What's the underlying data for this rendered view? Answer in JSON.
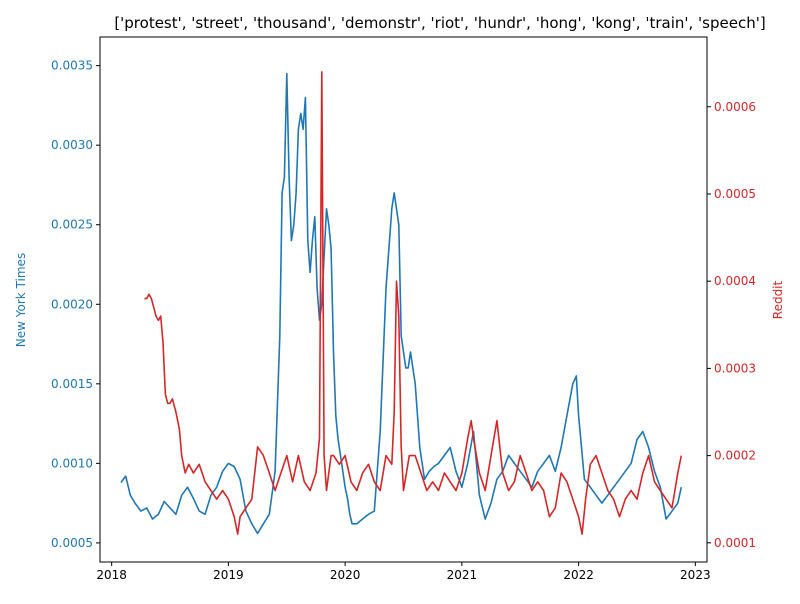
{
  "chart_data": {
    "type": "line",
    "title": "['protest', 'street', 'thousand', 'demonstr', 'riot', 'hundr', 'hong', 'kong', 'train', 'speech']",
    "xlabel": "",
    "x_ticks": [
      "2018",
      "2019",
      "2020",
      "2021",
      "2022",
      "2023"
    ],
    "xlim": [
      2017.9,
      2023.1
    ],
    "y_left": {
      "label": "New York Times",
      "ylim": [
        0.00038,
        0.00368
      ],
      "ticks": [
        "0.0005",
        "0.0010",
        "0.0015",
        "0.0020",
        "0.0025",
        "0.0030",
        "0.0035"
      ],
      "color": "#1f77b4"
    },
    "y_right": {
      "label": "Reddit",
      "ylim": [
        7.8e-05,
        0.00068
      ],
      "ticks": [
        "0.0001",
        "0.0002",
        "0.0003",
        "0.0004",
        "0.0005",
        "0.0006"
      ],
      "color": "#d62728"
    },
    "series": [
      {
        "name": "New York Times",
        "axis": "left",
        "color": "#1f77b4",
        "x": [
          2018.08,
          2018.12,
          2018.16,
          2018.2,
          2018.25,
          2018.3,
          2018.35,
          2018.4,
          2018.45,
          2018.5,
          2018.55,
          2018.6,
          2018.65,
          2018.7,
          2018.75,
          2018.8,
          2018.85,
          2018.9,
          2018.95,
          2019.0,
          2019.05,
          2019.1,
          2019.15,
          2019.2,
          2019.25,
          2019.3,
          2019.35,
          2019.4,
          2019.44,
          2019.46,
          2019.48,
          2019.5,
          2019.52,
          2019.54,
          2019.56,
          2019.58,
          2019.6,
          2019.62,
          2019.64,
          2019.66,
          2019.68,
          2019.7,
          2019.72,
          2019.74,
          2019.76,
          2019.78,
          2019.8,
          2019.82,
          2019.84,
          2019.86,
          2019.88,
          2019.9,
          2019.92,
          2019.94,
          2019.96,
          2019.98,
          2020.0,
          2020.02,
          2020.04,
          2020.06,
          2020.1,
          2020.15,
          2020.2,
          2020.25,
          2020.3,
          2020.35,
          2020.4,
          2020.42,
          2020.44,
          2020.46,
          2020.48,
          2020.5,
          2020.52,
          2020.54,
          2020.56,
          2020.6,
          2020.64,
          2020.68,
          2020.72,
          2020.76,
          2020.8,
          2020.85,
          2020.9,
          2020.95,
          2021.0,
          2021.05,
          2021.1,
          2021.15,
          2021.2,
          2021.25,
          2021.3,
          2021.35,
          2021.4,
          2021.45,
          2021.5,
          2021.55,
          2021.6,
          2021.65,
          2021.7,
          2021.75,
          2021.8,
          2021.85,
          2021.9,
          2021.95,
          2021.98,
          2022.0,
          2022.05,
          2022.1,
          2022.15,
          2022.2,
          2022.25,
          2022.3,
          2022.35,
          2022.4,
          2022.45,
          2022.5,
          2022.55,
          2022.6,
          2022.65,
          2022.7,
          2022.75,
          2022.8,
          2022.85,
          2022.88
        ],
        "values": [
          0.00088,
          0.00092,
          0.0008,
          0.00075,
          0.0007,
          0.00072,
          0.00065,
          0.00068,
          0.00076,
          0.00072,
          0.00068,
          0.0008,
          0.00085,
          0.00078,
          0.0007,
          0.00068,
          0.0008,
          0.00085,
          0.00095,
          0.001,
          0.00098,
          0.0009,
          0.0007,
          0.00062,
          0.00056,
          0.00062,
          0.00068,
          0.00095,
          0.0018,
          0.0027,
          0.0028,
          0.00345,
          0.0028,
          0.0024,
          0.0025,
          0.0027,
          0.0031,
          0.0032,
          0.0031,
          0.0033,
          0.0024,
          0.0022,
          0.0024,
          0.00255,
          0.0021,
          0.0019,
          0.002,
          0.0023,
          0.0026,
          0.0025,
          0.00235,
          0.0017,
          0.0013,
          0.00115,
          0.00105,
          0.00095,
          0.00085,
          0.00078,
          0.00068,
          0.00062,
          0.00062,
          0.00065,
          0.00068,
          0.0007,
          0.0012,
          0.0021,
          0.0026,
          0.0027,
          0.0026,
          0.0025,
          0.0018,
          0.0017,
          0.0016,
          0.0016,
          0.0017,
          0.0015,
          0.0011,
          0.0009,
          0.00095,
          0.00098,
          0.001,
          0.00105,
          0.0011,
          0.00095,
          0.00085,
          0.001,
          0.0012,
          0.0008,
          0.00065,
          0.00075,
          0.0009,
          0.00095,
          0.00105,
          0.001,
          0.00095,
          0.0009,
          0.00085,
          0.00095,
          0.001,
          0.00105,
          0.00095,
          0.0011,
          0.0013,
          0.0015,
          0.00155,
          0.0013,
          0.0009,
          0.00085,
          0.0008,
          0.00075,
          0.0008,
          0.00085,
          0.0009,
          0.00095,
          0.001,
          0.00115,
          0.0012,
          0.0011,
          0.00095,
          0.00085,
          0.00065,
          0.0007,
          0.00075,
          0.00085
        ]
      },
      {
        "name": "Reddit",
        "axis": "right",
        "color": "#d62728",
        "x": [
          2018.28,
          2018.3,
          2018.32,
          2018.34,
          2018.36,
          2018.38,
          2018.4,
          2018.42,
          2018.44,
          2018.46,
          2018.48,
          2018.5,
          2018.52,
          2018.55,
          2018.58,
          2018.6,
          2018.63,
          2018.66,
          2018.7,
          2018.75,
          2018.8,
          2018.85,
          2018.9,
          2018.95,
          2019.0,
          2019.05,
          2019.08,
          2019.1,
          2019.15,
          2019.2,
          2019.25,
          2019.3,
          2019.35,
          2019.4,
          2019.45,
          2019.5,
          2019.55,
          2019.6,
          2019.65,
          2019.7,
          2019.75,
          2019.78,
          2019.8,
          2019.82,
          2019.84,
          2019.86,
          2019.88,
          2019.9,
          2019.95,
          2020.0,
          2020.05,
          2020.1,
          2020.15,
          2020.2,
          2020.25,
          2020.3,
          2020.35,
          2020.4,
          2020.42,
          2020.44,
          2020.46,
          2020.48,
          2020.5,
          2020.55,
          2020.6,
          2020.65,
          2020.7,
          2020.75,
          2020.8,
          2020.85,
          2020.9,
          2020.95,
          2021.0,
          2021.05,
          2021.08,
          2021.1,
          2021.15,
          2021.2,
          2021.25,
          2021.3,
          2021.35,
          2021.4,
          2021.45,
          2021.5,
          2021.55,
          2021.6,
          2021.65,
          2021.7,
          2021.75,
          2021.8,
          2021.85,
          2021.9,
          2021.95,
          2022.0,
          2022.03,
          2022.06,
          2022.1,
          2022.15,
          2022.2,
          2022.25,
          2022.3,
          2022.35,
          2022.4,
          2022.45,
          2022.5,
          2022.55,
          2022.6,
          2022.65,
          2022.7,
          2022.75,
          2022.8,
          2022.85,
          2022.88
        ],
        "values": [
          0.00038,
          0.00038,
          0.000385,
          0.00038,
          0.00037,
          0.00036,
          0.000355,
          0.00036,
          0.00033,
          0.00027,
          0.00026,
          0.00026,
          0.000265,
          0.00025,
          0.00023,
          0.0002,
          0.00018,
          0.00019,
          0.00018,
          0.00019,
          0.00017,
          0.00016,
          0.00015,
          0.00016,
          0.00015,
          0.00013,
          0.00011,
          0.00013,
          0.00014,
          0.00015,
          0.00021,
          0.0002,
          0.00018,
          0.00016,
          0.00018,
          0.0002,
          0.00017,
          0.0002,
          0.00017,
          0.00016,
          0.00018,
          0.00022,
          0.00064,
          0.0002,
          0.00016,
          0.00018,
          0.0002,
          0.0002,
          0.00019,
          0.0002,
          0.00017,
          0.00016,
          0.00018,
          0.00019,
          0.00017,
          0.00016,
          0.0002,
          0.00019,
          0.00025,
          0.0004,
          0.00036,
          0.00021,
          0.00016,
          0.0002,
          0.0002,
          0.00018,
          0.00016,
          0.00017,
          0.00016,
          0.00018,
          0.00017,
          0.00016,
          0.00018,
          0.00022,
          0.00024,
          0.00022,
          0.00018,
          0.00016,
          0.0002,
          0.00024,
          0.00018,
          0.00016,
          0.00017,
          0.0002,
          0.00018,
          0.00016,
          0.00017,
          0.00016,
          0.00013,
          0.00014,
          0.00018,
          0.00017,
          0.00015,
          0.00013,
          0.00011,
          0.00015,
          0.00019,
          0.0002,
          0.00018,
          0.00016,
          0.00015,
          0.00013,
          0.00015,
          0.00016,
          0.00015,
          0.00018,
          0.0002,
          0.00017,
          0.00016,
          0.00015,
          0.00014,
          0.00018,
          0.0002
        ]
      }
    ]
  }
}
